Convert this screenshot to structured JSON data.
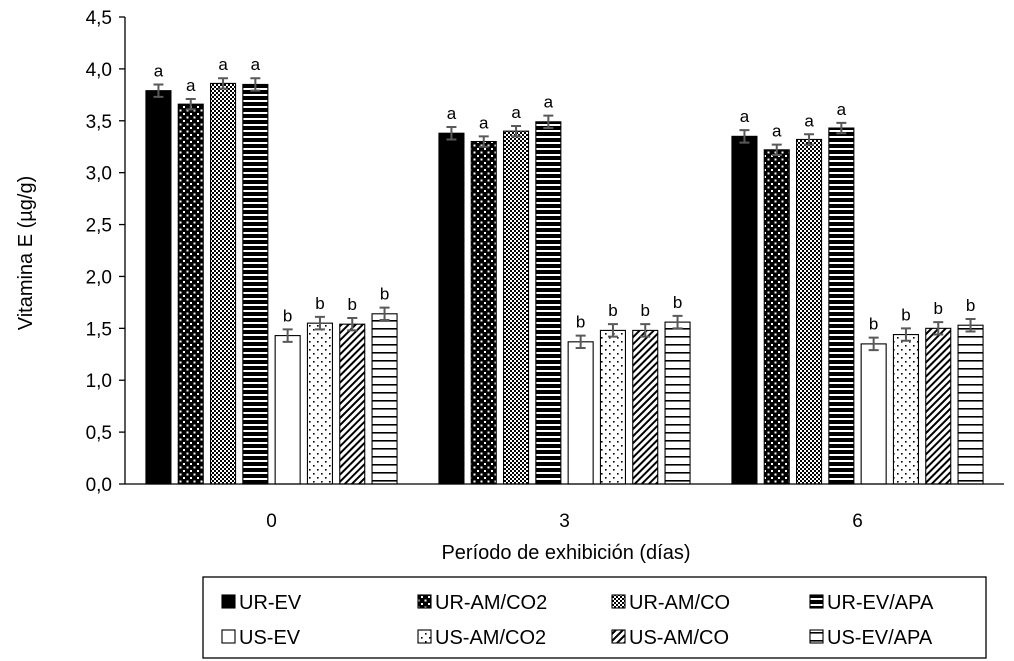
{
  "chart_data": {
    "type": "bar",
    "title": "",
    "xlabel": "Período de exhibición (días)",
    "ylabel": "Vitamina E (µg/g)",
    "ylim": [
      0,
      4.5
    ],
    "yticks": [
      "0,0",
      "0,5",
      "1,0",
      "1,5",
      "2,0",
      "2,5",
      "3,0",
      "3,5",
      "4,0",
      "4,5"
    ],
    "categories": [
      "0",
      "3",
      "6"
    ],
    "legend_position": "bottom",
    "grid": false,
    "series": [
      {
        "name": "UR-EV",
        "values": [
          3.79,
          3.38,
          3.35
        ],
        "errors": [
          0.06,
          0.06,
          0.06
        ],
        "labels": [
          "a",
          "a",
          "a"
        ],
        "pattern": "solid",
        "color": "#000000"
      },
      {
        "name": "UR-AM/CO2",
        "values": [
          3.66,
          3.3,
          3.22
        ],
        "errors": [
          0.05,
          0.05,
          0.05
        ],
        "labels": [
          "a",
          "a",
          "a"
        ],
        "pattern": "dots-white-on-black",
        "color": "#000000"
      },
      {
        "name": "UR-AM/CO",
        "values": [
          3.86,
          3.4,
          3.32
        ],
        "errors": [
          0.05,
          0.05,
          0.05
        ],
        "labels": [
          "a",
          "a",
          "a"
        ],
        "pattern": "checker",
        "color": "#000000"
      },
      {
        "name": "UR-EV/APA",
        "values": [
          3.85,
          3.49,
          3.43
        ],
        "errors": [
          0.06,
          0.06,
          0.05
        ],
        "labels": [
          "a",
          "a",
          "a"
        ],
        "pattern": "thick-horizontal",
        "color": "#000000"
      },
      {
        "name": "US-EV",
        "values": [
          1.43,
          1.37,
          1.35
        ],
        "errors": [
          0.06,
          0.06,
          0.06
        ],
        "labels": [
          "b",
          "b",
          "b"
        ],
        "pattern": "white",
        "color": "#000000"
      },
      {
        "name": "US-AM/CO2",
        "values": [
          1.55,
          1.48,
          1.44
        ],
        "errors": [
          0.06,
          0.06,
          0.06
        ],
        "labels": [
          "b",
          "b",
          "b"
        ],
        "pattern": "dots-black-on-white",
        "color": "#000000"
      },
      {
        "name": "US-AM/CO",
        "values": [
          1.54,
          1.48,
          1.5
        ],
        "errors": [
          0.06,
          0.06,
          0.06
        ],
        "labels": [
          "b",
          "b",
          "b"
        ],
        "pattern": "diagonal",
        "color": "#000000"
      },
      {
        "name": "US-EV/APA",
        "values": [
          1.64,
          1.56,
          1.53
        ],
        "errors": [
          0.06,
          0.06,
          0.06
        ],
        "labels": [
          "b",
          "b",
          "b"
        ],
        "pattern": "thin-horizontal",
        "color": "#000000"
      }
    ],
    "error_bar_color": "#595959"
  }
}
